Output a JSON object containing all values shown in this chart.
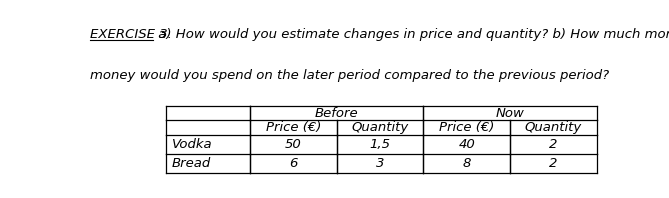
{
  "title_exercise": "EXERCISE 3.",
  "title_line1": " a) How would you estimate changes in price and quantity? b) How much more",
  "title_line2": "money would you spend on the later period compared to the previous period?",
  "col_header_before": "Before",
  "col_header_now": "Now",
  "sub_headers": [
    "Price (€)",
    "Quantity",
    "Price (€)",
    "Quantity"
  ],
  "row_labels": [
    "Vodka",
    "Bread"
  ],
  "data": [
    [
      "50",
      "1,5",
      "40",
      "2"
    ],
    [
      "6",
      "3",
      "8",
      "2"
    ]
  ],
  "bg_color": "#ffffff",
  "text_color": "#000000",
  "font_size": 9.5,
  "lw": 0.9
}
